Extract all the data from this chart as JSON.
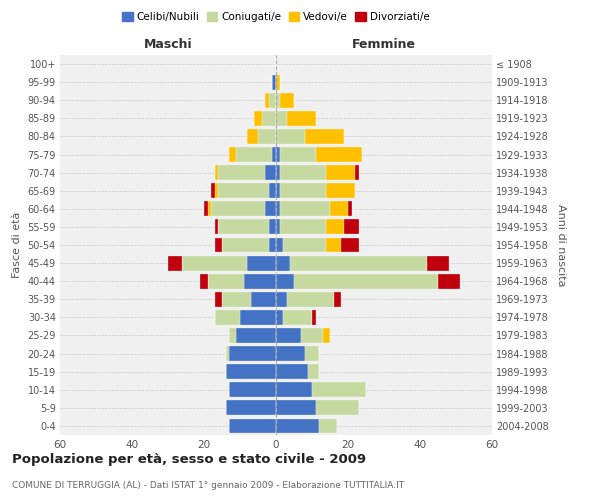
{
  "age_groups": [
    "0-4",
    "5-9",
    "10-14",
    "15-19",
    "20-24",
    "25-29",
    "30-34",
    "35-39",
    "40-44",
    "45-49",
    "50-54",
    "55-59",
    "60-64",
    "65-69",
    "70-74",
    "75-79",
    "80-84",
    "85-89",
    "90-94",
    "95-99",
    "100+"
  ],
  "birth_years": [
    "2004-2008",
    "1999-2003",
    "1994-1998",
    "1989-1993",
    "1984-1988",
    "1979-1983",
    "1974-1978",
    "1969-1973",
    "1964-1968",
    "1959-1963",
    "1954-1958",
    "1949-1953",
    "1944-1948",
    "1939-1943",
    "1934-1938",
    "1929-1933",
    "1924-1928",
    "1919-1923",
    "1914-1918",
    "1909-1913",
    "≤ 1908"
  ],
  "male": {
    "celibi": [
      13,
      14,
      13,
      14,
      13,
      11,
      10,
      7,
      9,
      8,
      2,
      2,
      3,
      2,
      3,
      1,
      0,
      0,
      0,
      1,
      0
    ],
    "coniugati": [
      0,
      0,
      0,
      0,
      1,
      2,
      7,
      8,
      10,
      18,
      13,
      14,
      15,
      14,
      13,
      10,
      5,
      4,
      2,
      0,
      0
    ],
    "vedovi": [
      0,
      0,
      0,
      0,
      0,
      0,
      0,
      0,
      0,
      0,
      0,
      0,
      1,
      1,
      1,
      2,
      3,
      2,
      1,
      0,
      0
    ],
    "divorziati": [
      0,
      0,
      0,
      0,
      0,
      0,
      0,
      2,
      2,
      4,
      2,
      1,
      1,
      1,
      0,
      0,
      0,
      0,
      0,
      0,
      0
    ]
  },
  "female": {
    "nubili": [
      12,
      11,
      10,
      9,
      8,
      7,
      2,
      3,
      5,
      4,
      2,
      1,
      1,
      1,
      1,
      1,
      0,
      0,
      0,
      0,
      0
    ],
    "coniugate": [
      5,
      12,
      15,
      3,
      4,
      6,
      8,
      13,
      40,
      38,
      12,
      13,
      14,
      13,
      13,
      10,
      8,
      3,
      1,
      0,
      0
    ],
    "vedove": [
      0,
      0,
      0,
      0,
      0,
      2,
      0,
      0,
      0,
      0,
      4,
      5,
      5,
      8,
      8,
      13,
      11,
      8,
      4,
      1,
      0
    ],
    "divorziate": [
      0,
      0,
      0,
      0,
      0,
      0,
      1,
      2,
      6,
      6,
      5,
      4,
      1,
      0,
      1,
      0,
      0,
      0,
      0,
      0,
      0
    ]
  },
  "colors": {
    "celibi": "#4472c4",
    "coniugati": "#c5d9a0",
    "vedovi": "#ffc000",
    "divorziati": "#c0000c"
  },
  "title": "Popolazione per età, sesso e stato civile - 2009",
  "subtitle": "COMUNE DI TERRUGGIA (AL) - Dati ISTAT 1° gennaio 2009 - Elaborazione TUTTITALIA.IT",
  "xlabel_left": "Maschi",
  "xlabel_right": "Femmine",
  "ylabel_left": "Fasce di età",
  "ylabel_right": "Anni di nascita",
  "xlim": 60,
  "bg_color": "#f0f0f0",
  "grid_color": "#cccccc"
}
